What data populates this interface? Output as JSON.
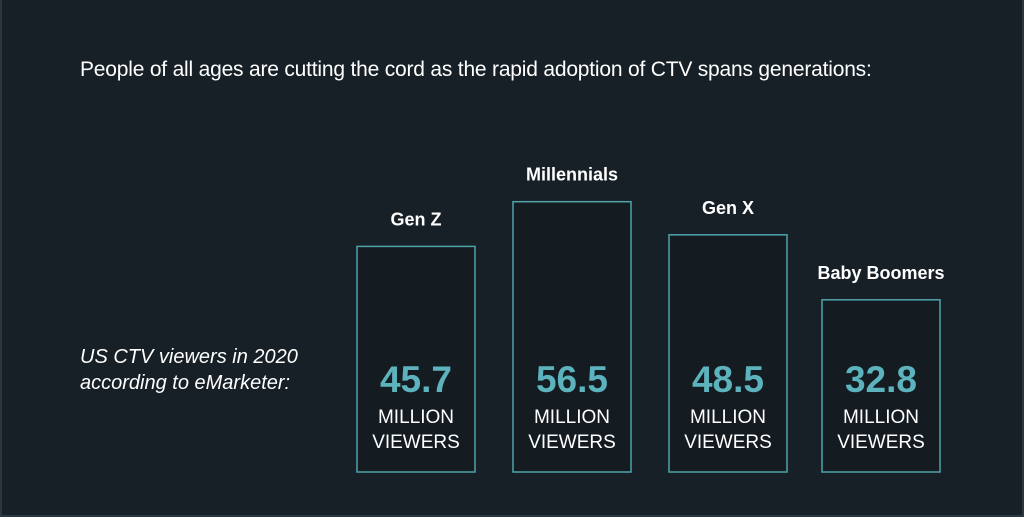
{
  "headline": "People of all ages are cutting the cord as the rapid adoption of CTV spans generations:",
  "side_note": {
    "line1": "US CTV viewers in 2020",
    "line2": "according to eMarketer:"
  },
  "colors": {
    "background": "#162026",
    "bar_border": "#4fa3ab",
    "value_text": "#5db3bd"
  },
  "chart_data": {
    "type": "bar",
    "categories": [
      "Gen Z",
      "Millennials",
      "Gen X",
      "Baby Boomers"
    ],
    "values": [
      45.7,
      56.5,
      48.5,
      32.8
    ],
    "value_labels": [
      "45.7",
      "56.5",
      "48.5",
      "32.8"
    ],
    "unit_line1": "MILLION",
    "unit_line2": "VIEWERS",
    "title": "People of all ages are cutting the cord as the rapid adoption of CTV spans generations:",
    "xlabel": "",
    "ylabel": "",
    "grid": false
  }
}
